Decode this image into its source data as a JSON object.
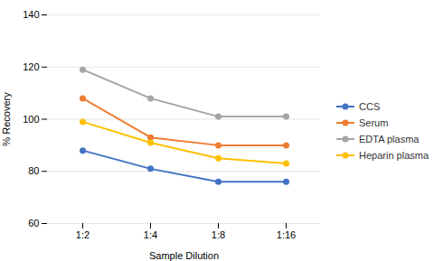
{
  "chart_data": {
    "type": "line",
    "xlabel": "Sample Dilution",
    "ylabel": "% Recovery",
    "categories": [
      "1:2",
      "1:4",
      "1:8",
      "1:16"
    ],
    "series": [
      {
        "name": "CCS",
        "color": "#4472c4",
        "marker": "circle",
        "values": [
          88,
          81,
          76,
          76
        ]
      },
      {
        "name": "Serum",
        "color": "#ed7d31",
        "marker": "circle",
        "values": [
          108,
          93,
          90,
          90
        ]
      },
      {
        "name": "EDTA plasma",
        "color": "#a5a5a5",
        "marker": "circle",
        "values": [
          119,
          108,
          101,
          101
        ]
      },
      {
        "name": "Heparin plasma",
        "color": "#ffc000",
        "marker": "circle",
        "values": [
          99,
          91,
          85,
          83
        ]
      }
    ],
    "ylim": [
      60,
      140
    ],
    "yticks": [
      60,
      80,
      100,
      120,
      140
    ],
    "grid": true,
    "legend": "right"
  }
}
